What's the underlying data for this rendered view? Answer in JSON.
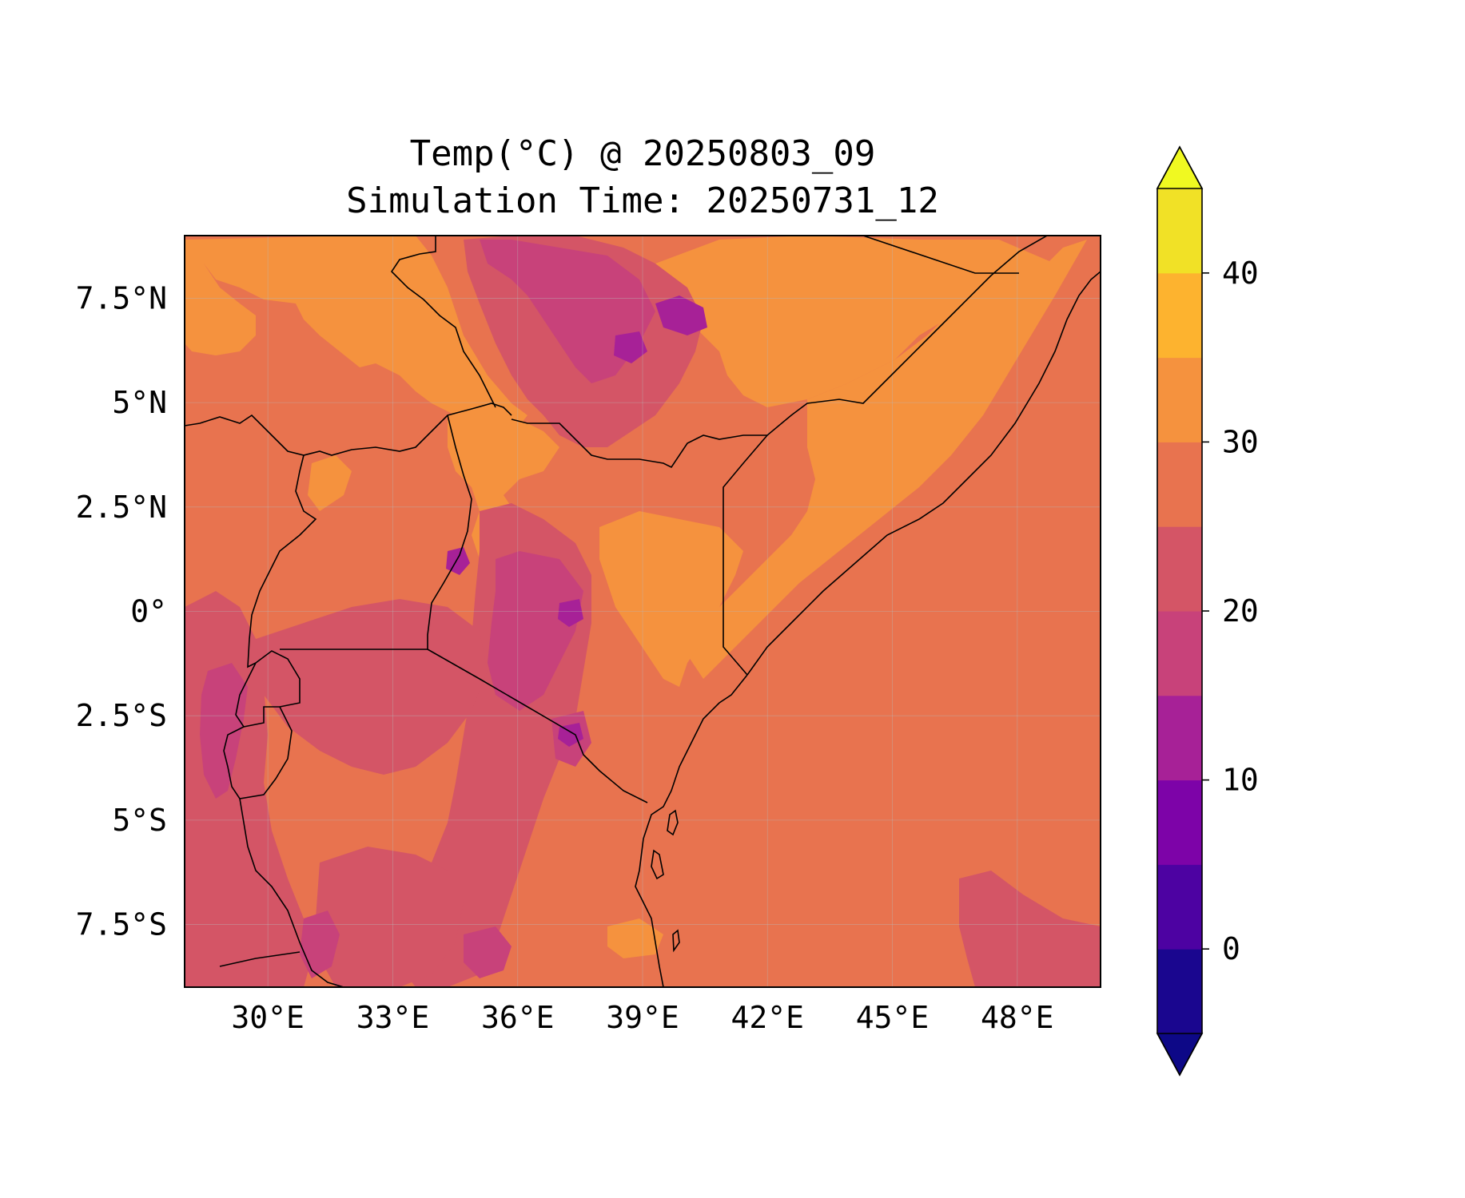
{
  "map": {
    "title_line1": "Temp(°C) @ 20250803_09",
    "title_line2": "Simulation Time: 20250731_12",
    "extent": {
      "lon": [
        28.0,
        50.0
      ],
      "lat": [
        -9.0,
        9.0
      ]
    },
    "lon_ticks": [
      {
        "value": 30,
        "label": "30°E"
      },
      {
        "value": 33,
        "label": "33°E"
      },
      {
        "value": 36,
        "label": "36°E"
      },
      {
        "value": 39,
        "label": "39°E"
      },
      {
        "value": 42,
        "label": "42°E"
      },
      {
        "value": 45,
        "label": "45°E"
      },
      {
        "value": 48,
        "label": "48°E"
      }
    ],
    "lat_ticks": [
      {
        "value": 7.5,
        "label": "7.5°N"
      },
      {
        "value": 5,
        "label": "5°N"
      },
      {
        "value": 2.5,
        "label": "2.5°N"
      },
      {
        "value": 0,
        "label": "0°"
      },
      {
        "value": -2.5,
        "label": "2.5°S"
      },
      {
        "value": -5,
        "label": "5°S"
      },
      {
        "value": -7.5,
        "label": "7.5°S"
      }
    ],
    "gridlines": true,
    "colormap": "plasma",
    "colorbar": {
      "range": [
        -5,
        45
      ],
      "levels": [
        -5,
        0,
        5,
        10,
        15,
        20,
        25,
        30,
        35,
        40,
        45
      ],
      "extend": "both",
      "tick_labels": [
        {
          "value": 0,
          "label": "0"
        },
        {
          "value": 10,
          "label": "10"
        },
        {
          "value": 20,
          "label": "20"
        },
        {
          "value": 30,
          "label": "30"
        },
        {
          "value": 40,
          "label": "40"
        }
      ],
      "colors": [
        "#1a068f",
        "#4d02a2",
        "#7d03a8",
        "#a72197",
        "#c8427a",
        "#d45566",
        "#e8734f",
        "#f5923e",
        "#fdb32f",
        "#f1e126"
      ],
      "under_color": "#0d0887",
      "over_color": "#f0f921"
    },
    "palette": {
      "bg": "#e8734f",
      "warm": "#f5923e",
      "mid": "#d45566",
      "cool": "#c8427a",
      "cold": "#a72197",
      "coldest": "#7d03a8"
    }
  }
}
